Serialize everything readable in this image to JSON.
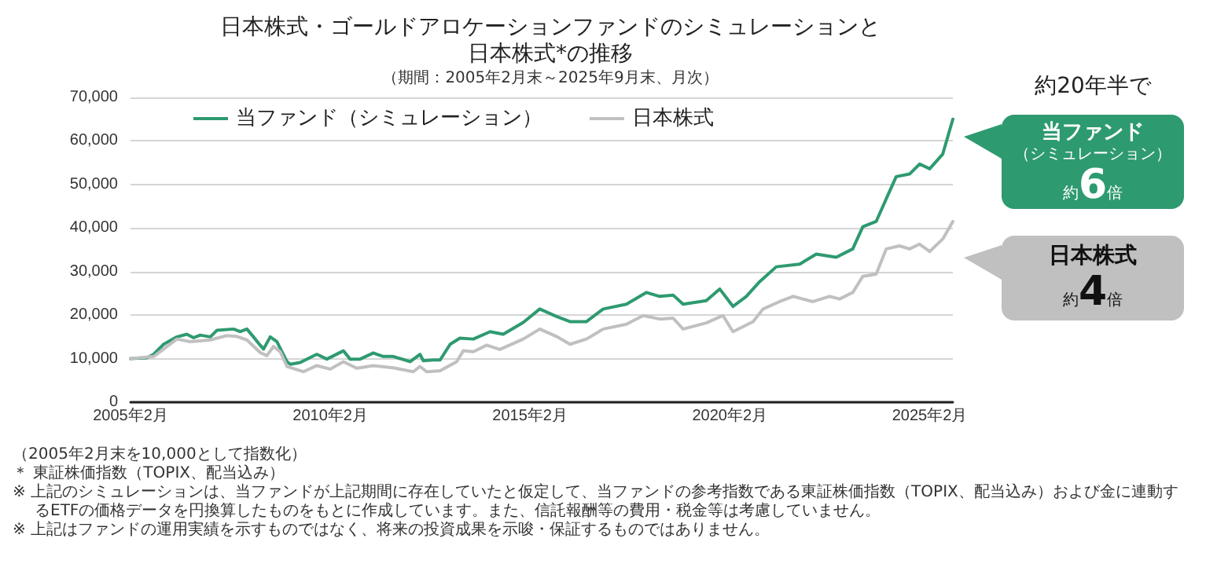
{
  "chart_data": {
    "type": "line",
    "title": "日本株式・ゴールドアロケーションファンドのシミュレーションと日本株式*の推移",
    "subtitle": "（期間：2005年2月末～2025年9月末、月次）",
    "series": [
      {
        "name": "当ファンド（シミュレーション）",
        "color": "#2e9a70",
        "x": [
          "2005-02",
          "2005-07",
          "2005-09",
          "2005-12",
          "2006-04",
          "2006-07",
          "2006-09",
          "2006-11",
          "2007-02",
          "2007-04",
          "2007-09",
          "2007-11",
          "2008-01",
          "2008-03",
          "2008-05",
          "2008-06",
          "2008-08",
          "2008-10",
          "2009-01",
          "2009-02",
          "2009-05",
          "2009-10",
          "2010-01",
          "2010-06",
          "2010-08",
          "2010-11",
          "2011-03",
          "2011-06",
          "2011-09",
          "2012-02",
          "2012-05",
          "2012-06",
          "2012-09",
          "2012-11",
          "2013-02",
          "2013-05",
          "2013-09",
          "2014-02",
          "2014-06",
          "2014-12",
          "2015-05",
          "2015-10",
          "2016-02",
          "2016-07",
          "2016-12",
          "2017-07",
          "2018-01",
          "2018-05",
          "2018-09",
          "2018-12",
          "2019-07",
          "2019-11",
          "2020-03",
          "2020-07",
          "2020-11",
          "2021-04",
          "2021-11",
          "2022-04",
          "2022-10",
          "2023-03",
          "2023-06",
          "2023-10",
          "2024-01",
          "2024-04",
          "2024-08",
          "2024-11",
          "2025-02",
          "2025-06",
          "2025-09"
        ],
        "values": [
          10000,
          10200,
          11000,
          13300,
          15000,
          15600,
          14800,
          15400,
          15000,
          16500,
          16800,
          16200,
          16800,
          15000,
          13100,
          12200,
          15000,
          13900,
          9300,
          8700,
          9100,
          11000,
          9900,
          11800,
          9900,
          9900,
          11300,
          10500,
          10500,
          9300,
          11000,
          9500,
          9700,
          9700,
          13300,
          14700,
          14500,
          16200,
          15600,
          18300,
          21400,
          19700,
          18500,
          18500,
          21400,
          22500,
          25200,
          24300,
          24600,
          22500,
          23300,
          26000,
          22000,
          24300,
          27700,
          31100,
          31700,
          34000,
          33300,
          35200,
          40300,
          41500,
          46700,
          51800,
          52400,
          54700,
          53600,
          57000,
          65000
        ]
      },
      {
        "name": "日本株式",
        "color": "#c0c0c0",
        "x": [
          "2005-02",
          "2005-09",
          "2006-04",
          "2006-08",
          "2007-02",
          "2007-07",
          "2007-10",
          "2008-01",
          "2008-05",
          "2008-07",
          "2008-09",
          "2008-11",
          "2009-01",
          "2009-06",
          "2009-10",
          "2010-02",
          "2010-06",
          "2010-10",
          "2011-03",
          "2011-09",
          "2012-03",
          "2012-05",
          "2012-07",
          "2012-11",
          "2013-04",
          "2013-06",
          "2013-09",
          "2014-01",
          "2014-05",
          "2014-12",
          "2015-05",
          "2015-10",
          "2016-02",
          "2016-07",
          "2016-12",
          "2017-07",
          "2017-12",
          "2018-05",
          "2018-09",
          "2018-12",
          "2019-07",
          "2019-12",
          "2020-03",
          "2020-09",
          "2020-12",
          "2021-05",
          "2021-09",
          "2022-03",
          "2022-08",
          "2022-11",
          "2023-03",
          "2023-06",
          "2023-10",
          "2024-01",
          "2024-05",
          "2024-08",
          "2024-11",
          "2025-02",
          "2025-06",
          "2025-09"
        ],
        "values": [
          10000,
          10500,
          14500,
          13900,
          14300,
          15300,
          15100,
          14300,
          11400,
          10700,
          12800,
          11600,
          8200,
          7000,
          8400,
          7600,
          9300,
          7800,
          8400,
          7900,
          7000,
          8200,
          7000,
          7200,
          9300,
          11800,
          11600,
          13100,
          12100,
          14500,
          16800,
          15100,
          13300,
          14500,
          16800,
          17900,
          19900,
          19100,
          19300,
          16800,
          18200,
          19900,
          16200,
          18500,
          21400,
          23100,
          24300,
          23100,
          24300,
          23700,
          25200,
          28900,
          29400,
          35200,
          35900,
          35200,
          36300,
          34600,
          37500,
          41500
        ]
      }
    ],
    "xlim": [
      "2005-02",
      "2025-09"
    ],
    "xticks": [
      {
        "value": "2005-02",
        "label": "2005年2月"
      },
      {
        "value": "2010-02",
        "label": "2010年2月"
      },
      {
        "value": "2015-02",
        "label": "2015年2月"
      },
      {
        "value": "2020-02",
        "label": "2020年2月"
      },
      {
        "value": "2025-02",
        "label": "2025年2月"
      }
    ],
    "ylim": [
      0,
      70000
    ],
    "yticks": [
      0,
      {
        "value": 10000,
        "label": "10,000"
      },
      {
        "value": 20000,
        "label": "20,000"
      },
      {
        "value": 30000,
        "label": "30,000"
      },
      {
        "value": 40000,
        "label": "40,000"
      },
      {
        "value": 50000,
        "label": "50,000"
      },
      {
        "value": 60000,
        "label": "60,000"
      },
      {
        "value": 70000,
        "label": "70,000"
      }
    ],
    "grid": "y",
    "legend": "top left",
    "marker": "none",
    "line_style": "solid",
    "annotations": [
      "約20年半で",
      "当ファンド",
      "（シミュレーション）",
      "約6倍",
      "日本株式",
      "約4倍",
      "（2005年2月末を10,000として指数化）",
      "＊ 東証株価指数（TOPIX、配当込み）",
      "※ 上記のシミュレーションは、当ファンドが上記期間に存在していたと仮定して、当ファンドの参考指数である東証株価指数（TOPIX、配当込み）および金に連動するETFの価格データを円換算したものをもとに作成しています。また、信託報酬等の費用・税金等は考慮していません。",
      "※ 上記はファンドの運用実績を示すものではなく、将来の投資成果を示唆・保証するものではありません。"
    ]
  }
}
